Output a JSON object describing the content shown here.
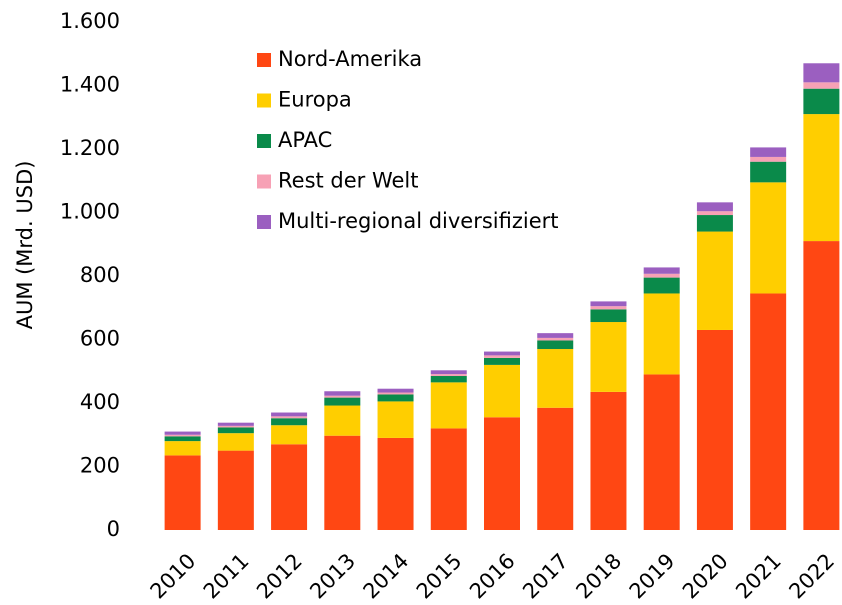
{
  "chart_data": {
    "type": "stacked_bar",
    "ylabel": "AUM (Mrd. USD)",
    "categories": [
      "2010",
      "2011",
      "2012",
      "2013",
      "2014",
      "2015",
      "2016",
      "2017",
      "2018",
      "2019",
      "2020",
      "2021",
      "2022"
    ],
    "series": [
      {
        "name": "Nord-Amerika",
        "color": "#ff4713",
        "values": [
          235,
          250,
          270,
          297,
          290,
          320,
          355,
          385,
          435,
          490,
          630,
          745,
          910
        ]
      },
      {
        "name": "Europa",
        "color": "#ffce00",
        "values": [
          45,
          55,
          60,
          95,
          115,
          145,
          165,
          185,
          220,
          255,
          310,
          350,
          400
        ]
      },
      {
        "name": "APAC",
        "color": "#0a8a4a",
        "values": [
          15,
          18,
          22,
          25,
          22,
          20,
          22,
          27,
          40,
          50,
          52,
          65,
          80
        ]
      },
      {
        "name": "Rest der Welt",
        "color": "#f7a1b5",
        "values": [
          5,
          5,
          6,
          6,
          6,
          6,
          8,
          8,
          10,
          12,
          12,
          15,
          20
        ]
      },
      {
        "name": "Multi-regional diversifiziert",
        "color": "#9b5fc0",
        "values": [
          10,
          10,
          12,
          14,
          12,
          12,
          12,
          15,
          15,
          20,
          28,
          30,
          60
        ]
      }
    ],
    "ylim": [
      0,
      1600
    ],
    "yticks": [
      0,
      200,
      400,
      600,
      800,
      {
        "value": 1000,
        "label": "1.000"
      },
      {
        "value": 1200,
        "label": "1.200"
      },
      {
        "value": 1400,
        "label": "1.400"
      },
      {
        "value": 1600,
        "label": "1.600"
      }
    ],
    "legend": "upper left"
  }
}
